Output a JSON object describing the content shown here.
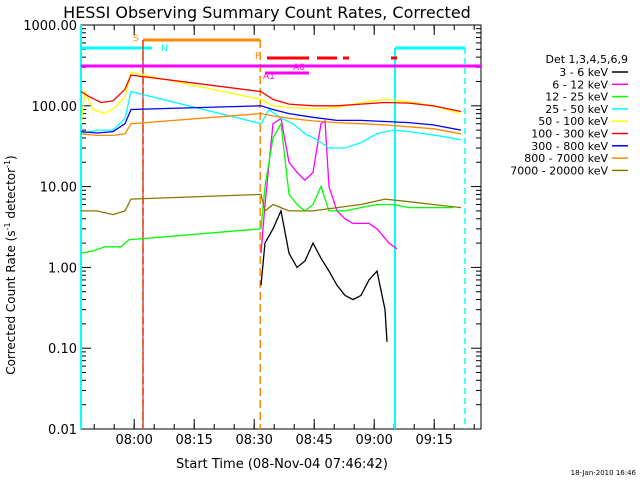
{
  "chart_data": {
    "type": "line",
    "title": "HESSI Observing Summary Count Rates, Corrected",
    "xlabel": "Start Time (08-Nov-04 07:46:42)",
    "ylabel_main": "Corrected Count Rate (s",
    "ylabel_sup": "-1",
    "ylabel_mid": " detector",
    "ylabel_end": ")",
    "y_scale": "log",
    "ylim": [
      0.01,
      1000
    ],
    "xlim_minutes_after_start": [
      0,
      100
    ],
    "y_ticks": [
      {
        "label": "0.01",
        "value": 0.01
      },
      {
        "label": "0.10",
        "value": 0.1
      },
      {
        "label": "1.00",
        "value": 1
      },
      {
        "label": "10.00",
        "value": 10
      },
      {
        "label": "100.00",
        "value": 100
      },
      {
        "label": "1000.00",
        "value": 1000
      }
    ],
    "x_ticks": [
      {
        "label": "08:00",
        "minute": 13.3
      },
      {
        "label": "08:15",
        "minute": 28.3
      },
      {
        "label": "08:30",
        "minute": 43.3
      },
      {
        "label": "08:45",
        "minute": 58.3
      },
      {
        "label": "09:00",
        "minute": 73.3
      },
      {
        "label": "09:15",
        "minute": 88.3
      }
    ],
    "legend_title": "Det 1,3,4,5,6,9",
    "legend_position": "right",
    "series": [
      {
        "name": "3 - 6 keV",
        "color": "#000000",
        "points": [
          [
            45,
            0.6
          ],
          [
            46,
            2.0
          ],
          [
            48,
            3.0
          ],
          [
            50,
            5.0
          ],
          [
            52,
            1.5
          ],
          [
            54,
            1.0
          ],
          [
            56,
            1.2
          ],
          [
            58,
            2.0
          ],
          [
            60,
            1.3
          ],
          [
            62,
            0.9
          ],
          [
            64,
            0.6
          ],
          [
            66,
            0.45
          ],
          [
            68,
            0.4
          ],
          [
            70,
            0.45
          ],
          [
            72,
            0.7
          ],
          [
            74,
            0.9
          ],
          [
            76,
            0.3
          ],
          [
            76.5,
            0.12
          ]
        ]
      },
      {
        "name": "6 - 12 keV",
        "color": "#ff00ff",
        "points": [
          [
            45,
            1.5
          ],
          [
            46,
            6
          ],
          [
            48,
            60
          ],
          [
            50,
            70
          ],
          [
            52,
            20
          ],
          [
            54,
            15
          ],
          [
            56,
            12
          ],
          [
            58,
            15
          ],
          [
            60,
            60
          ],
          [
            61,
            65
          ],
          [
            62,
            10
          ],
          [
            64,
            5
          ],
          [
            66,
            4
          ],
          [
            68,
            3.5
          ],
          [
            70,
            3.5
          ],
          [
            72,
            3.5
          ],
          [
            74,
            3
          ],
          [
            77,
            2
          ],
          [
            79,
            1.7
          ]
        ]
      },
      {
        "name": "12 - 25 keV",
        "color": "#00ff00",
        "points": [
          [
            0,
            1.5
          ],
          [
            3,
            1.6
          ],
          [
            6,
            1.8
          ],
          [
            10,
            1.8
          ],
          [
            12,
            2.2
          ],
          [
            45,
            3
          ],
          [
            46,
            10
          ],
          [
            48,
            40
          ],
          [
            50,
            60
          ],
          [
            52,
            8
          ],
          [
            54,
            6
          ],
          [
            56,
            5
          ],
          [
            58,
            6
          ],
          [
            60,
            10
          ],
          [
            62,
            5
          ],
          [
            66,
            5
          ],
          [
            70,
            5.5
          ],
          [
            74,
            6
          ],
          [
            78,
            6
          ],
          [
            82,
            5.5
          ],
          [
            86,
            5.5
          ],
          [
            90,
            5.5
          ],
          [
            93,
            5.5
          ]
        ]
      },
      {
        "name": "25 - 50 keV",
        "color": "#00ffff",
        "points": [
          [
            0,
            45
          ],
          [
            4,
            50
          ],
          [
            8,
            50
          ],
          [
            11,
            70
          ],
          [
            12.5,
            150
          ],
          [
            45,
            60
          ],
          [
            47,
            90
          ],
          [
            50,
            70
          ],
          [
            53,
            60
          ],
          [
            56,
            45
          ],
          [
            59,
            38
          ],
          [
            62,
            30
          ],
          [
            66,
            30
          ],
          [
            70,
            35
          ],
          [
            74,
            45
          ],
          [
            78,
            50
          ],
          [
            82,
            48
          ],
          [
            86,
            45
          ],
          [
            90,
            42
          ],
          [
            95,
            38
          ]
        ]
      },
      {
        "name": "50 - 100 keV",
        "color": "#ffff00",
        "points": [
          [
            0,
            60
          ],
          [
            1,
            150
          ],
          [
            3,
            90
          ],
          [
            6,
            80
          ],
          [
            9,
            100
          ],
          [
            11,
            130
          ],
          [
            12.5,
            260
          ],
          [
            45,
            120
          ],
          [
            48,
            100
          ],
          [
            52,
            95
          ],
          [
            58,
            92
          ],
          [
            64,
            95
          ],
          [
            70,
            110
          ],
          [
            76,
            120
          ],
          [
            82,
            112
          ],
          [
            88,
            100
          ],
          [
            95,
            80
          ]
        ]
      },
      {
        "name": "100 - 300 keV",
        "color": "#ff0000",
        "points": [
          [
            0,
            150
          ],
          [
            2,
            130
          ],
          [
            5,
            110
          ],
          [
            8,
            115
          ],
          [
            11,
            160
          ],
          [
            12.5,
            240
          ],
          [
            45,
            150
          ],
          [
            48,
            120
          ],
          [
            52,
            105
          ],
          [
            58,
            100
          ],
          [
            64,
            100
          ],
          [
            70,
            105
          ],
          [
            76,
            110
          ],
          [
            82,
            108
          ],
          [
            88,
            100
          ],
          [
            95,
            85
          ]
        ]
      },
      {
        "name": "300 - 800 keV",
        "color": "#0000ff",
        "points": [
          [
            0,
            48
          ],
          [
            4,
            46
          ],
          [
            8,
            48
          ],
          [
            11,
            60
          ],
          [
            12.5,
            90
          ],
          [
            45,
            100
          ],
          [
            48,
            90
          ],
          [
            52,
            80
          ],
          [
            58,
            72
          ],
          [
            64,
            66
          ],
          [
            70,
            66
          ],
          [
            76,
            64
          ],
          [
            82,
            62
          ],
          [
            88,
            58
          ],
          [
            95,
            50
          ]
        ]
      },
      {
        "name": "800 - 7000 keV",
        "color": "#ff8800",
        "points": [
          [
            0,
            45
          ],
          [
            4,
            43
          ],
          [
            8,
            43
          ],
          [
            11,
            45
          ],
          [
            12.5,
            60
          ],
          [
            45,
            80
          ],
          [
            48,
            75
          ],
          [
            52,
            70
          ],
          [
            58,
            65
          ],
          [
            64,
            62
          ],
          [
            70,
            60
          ],
          [
            76,
            58
          ],
          [
            82,
            55
          ],
          [
            88,
            52
          ],
          [
            95,
            45
          ]
        ]
      },
      {
        "name": "7000 - 20000 keV",
        "color": "#887700",
        "points": [
          [
            0,
            5
          ],
          [
            4,
            5
          ],
          [
            8,
            4.5
          ],
          [
            11,
            5
          ],
          [
            12.5,
            7
          ],
          [
            45,
            8
          ],
          [
            46,
            5
          ],
          [
            48,
            6
          ],
          [
            52,
            5
          ],
          [
            58,
            5
          ],
          [
            64,
            5.5
          ],
          [
            70,
            6
          ],
          [
            76,
            7
          ],
          [
            82,
            6.5
          ],
          [
            88,
            6
          ],
          [
            95,
            5.5
          ]
        ]
      }
    ],
    "event_labels": [
      {
        "text": "S",
        "color": "#ff8800"
      },
      {
        "text": "N",
        "color": "#00ffff"
      },
      {
        "text": "F",
        "color": "#ff8800"
      },
      {
        "text": "A0",
        "color": "#ff00ff"
      },
      {
        "text": "A1",
        "color": "#ff00ff"
      }
    ],
    "timestamp": "18-Jan-2010 16:46"
  }
}
